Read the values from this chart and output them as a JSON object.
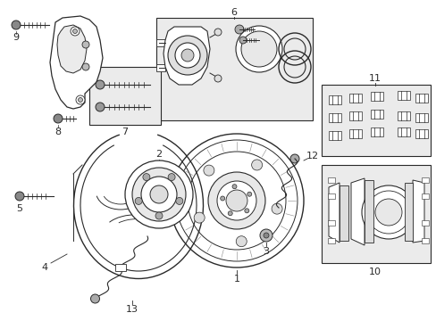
{
  "bg_color": "#ffffff",
  "lc": "#2a2a2a",
  "lc_light": "#666666",
  "box_fill": "#ebebeb",
  "figsize": [
    4.89,
    3.6
  ],
  "dpi": 100,
  "xlim": [
    0,
    489
  ],
  "ylim": [
    0,
    360
  ]
}
